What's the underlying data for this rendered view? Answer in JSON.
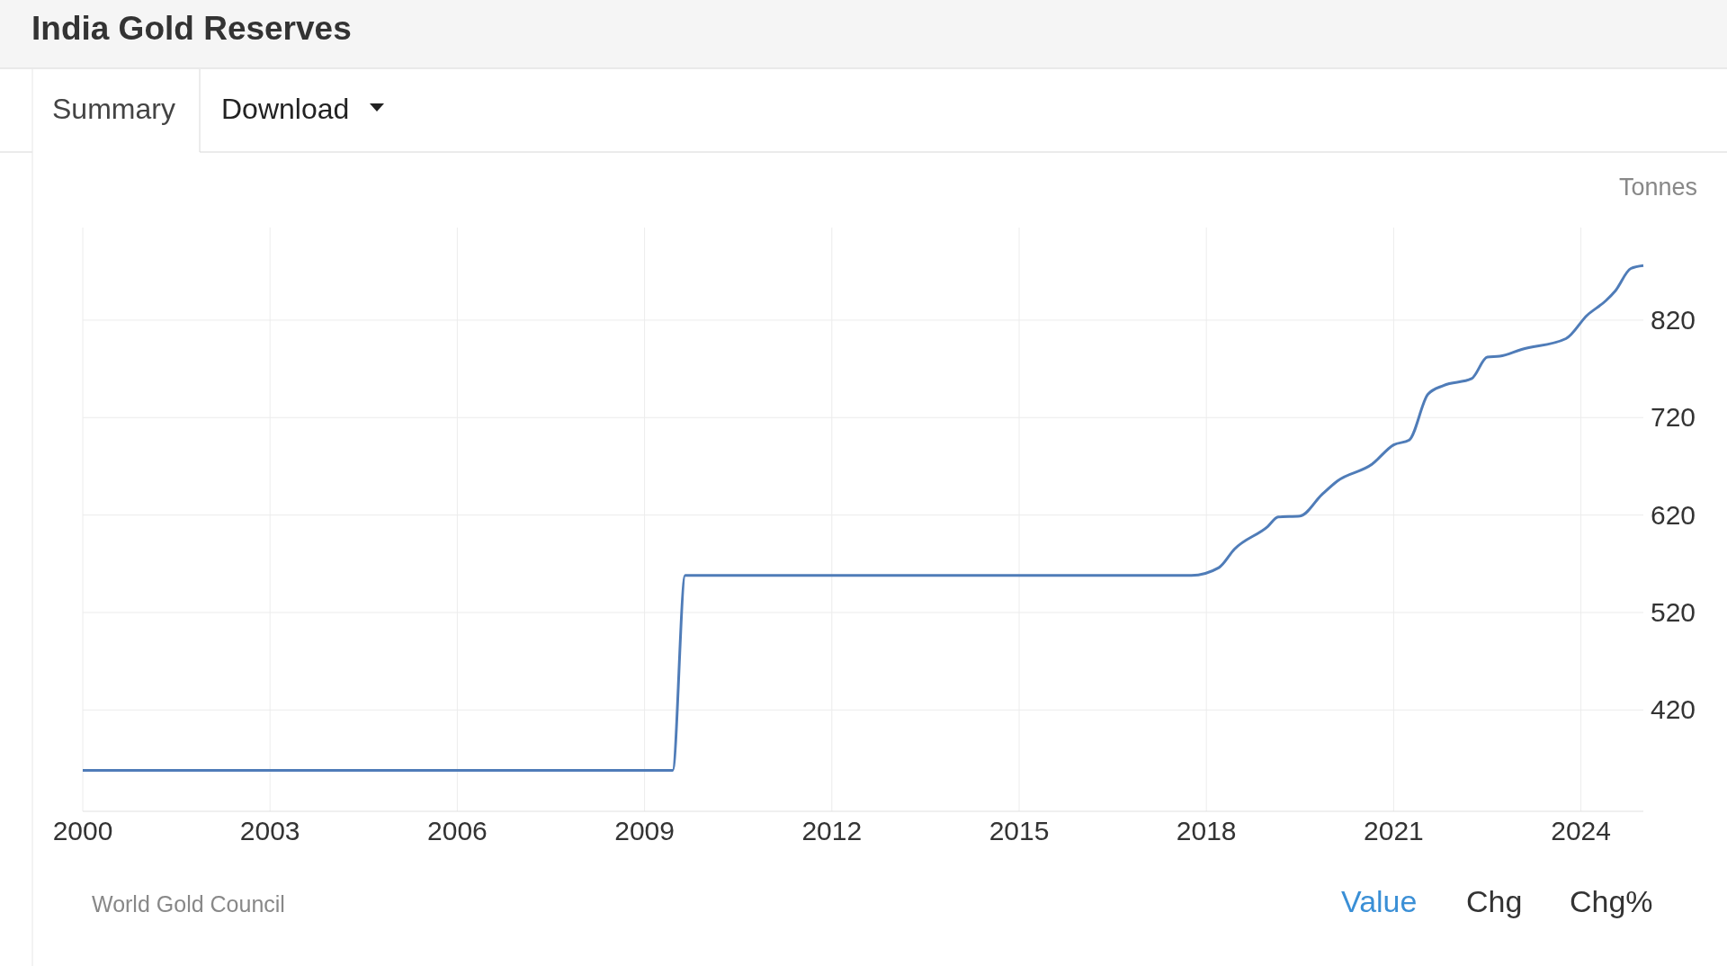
{
  "chart_data": {
    "type": "line",
    "title": "India Gold Reserves",
    "ylabel": "Tonnes",
    "annotations": [
      "Summary",
      "Download",
      "World Gold Council",
      "Value",
      "Chg",
      "Chg%"
    ],
    "x": [
      2000,
      2009.45,
      2009.65,
      2017.76,
      2018.2,
      2018.45,
      2018.98,
      2019.15,
      2019.5,
      2019.85,
      2020.1,
      2020.65,
      2021.0,
      2021.25,
      2021.55,
      2021.8,
      2022.25,
      2022.5,
      2022.7,
      2023.05,
      2023.76,
      2024.1,
      2024.4,
      2024.55,
      2024.8,
      2025.0
    ],
    "series": [
      {
        "color": "#4f7cb8",
        "values": [
          358,
          358,
          558,
          558,
          566,
          585,
          608,
          618,
          619,
          641,
          655,
          672,
          692,
          697,
          744,
          753,
          760,
          782,
          783,
          790,
          801,
          825,
          840,
          850,
          873,
          876
        ]
      }
    ],
    "xlim": [
      2000,
      2025
    ],
    "xticks": [
      2000,
      2003,
      2006,
      2009,
      2012,
      2015,
      2018,
      2021,
      2024
    ],
    "ylim": [
      316,
      915
    ],
    "yticks": [
      420,
      520,
      620,
      720,
      820
    ],
    "grid": true,
    "marker": "none",
    "line_style": "solid"
  }
}
